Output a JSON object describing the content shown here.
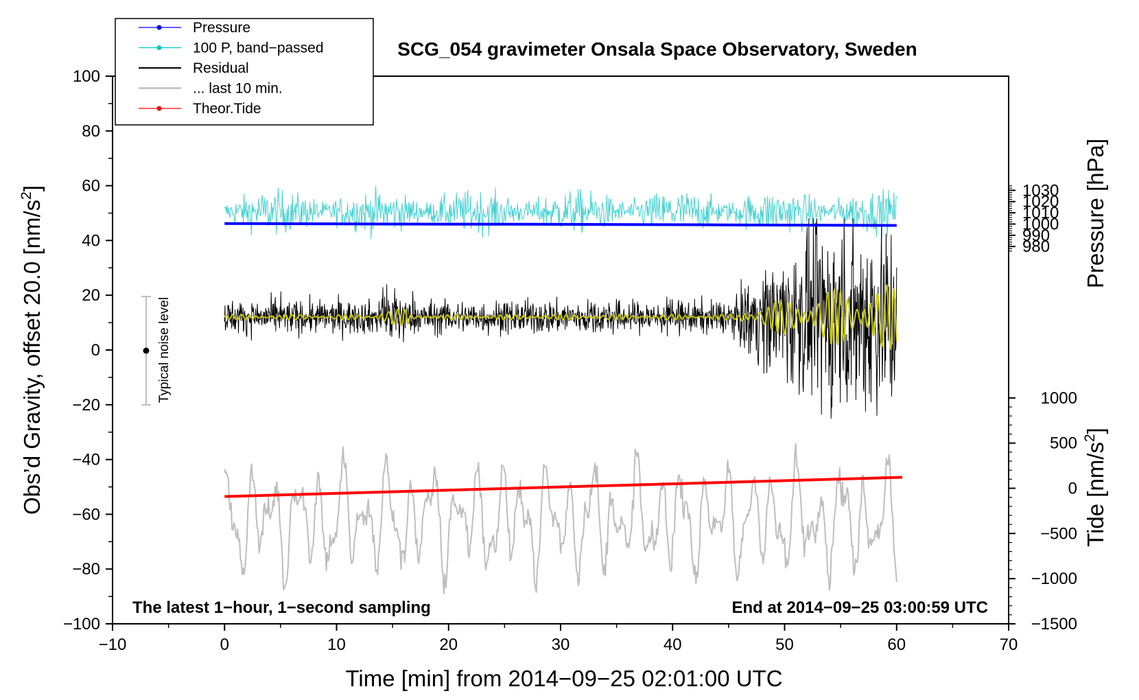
{
  "chart_data": {
    "type": "line",
    "title": "SCG_054 gravimeter Onsala Space Observatory, Sweden",
    "xlabel": "Time [min] from 2014−09−25 02:01:00 UTC",
    "ylabel": "Obs’d Gravity, offset 20.0 [nm/s",
    "ylabel_sup": "2",
    "ylabel_close": "]",
    "xlim": [
      -10,
      70
    ],
    "ylim": [
      -100,
      100
    ],
    "xticks": [
      -10,
      0,
      10,
      20,
      30,
      40,
      50,
      60,
      70
    ],
    "xtick_labels": [
      "−10",
      "0",
      "10",
      "20",
      "30",
      "40",
      "50",
      "60",
      "70"
    ],
    "yticks": [
      -100,
      -80,
      -60,
      -40,
      -20,
      0,
      20,
      40,
      60,
      80,
      100
    ],
    "ytick_labels": [
      "−100",
      "−80",
      "−60",
      "−40",
      "−20",
      "0",
      "20",
      "40",
      "60",
      "80",
      "100"
    ],
    "pressure_axis": {
      "label": "Pressure [hPa]",
      "ticks": [
        980,
        990,
        1000,
        1010,
        1020,
        1030
      ],
      "tick_labels": [
        "980",
        "990",
        "1000",
        "1010",
        "1020",
        "1030"
      ],
      "gravity_at_1000": 46,
      "gravity_per_hpa": 0.41
    },
    "tide_axis": {
      "label": "Tide [nm/s",
      "label_sup": "2",
      "label_close": "]",
      "ticks": [
        -1500,
        -1000,
        -500,
        0,
        500,
        1000
      ],
      "tick_labels": [
        "−1500",
        "−1000",
        "−500",
        "0",
        "500",
        "1000"
      ],
      "gravity_at_0": -50.5,
      "gravity_per_unit": 0.033
    },
    "legend": [
      {
        "label": "Pressure",
        "color": "#0000ff",
        "marker": true
      },
      {
        "label": "100 P, band−passed",
        "color": "#00c8c8",
        "marker": true
      },
      {
        "label": "Residual",
        "color": "#000000",
        "marker": false
      },
      {
        "label": "... last 10 min.",
        "color": "#bebebe",
        "marker": false
      },
      {
        "label": "Theor.Tide",
        "color": "#ff0000",
        "marker": true
      }
    ],
    "series": [
      {
        "name": "Pressure",
        "color": "#0000ff",
        "x": [
          0,
          15,
          30,
          45,
          60
        ],
        "y": [
          46.2,
          46.0,
          45.9,
          45.7,
          45.5
        ]
      },
      {
        "name": "100 P, band−passed",
        "color": "#40d0d0",
        "x_range": [
          0,
          60
        ],
        "center": 50.5,
        "amplitude": [
          3,
          7
        ]
      },
      {
        "name": "Residual",
        "color": "#000000",
        "x_range": [
          0,
          60
        ],
        "center": 12,
        "amplitude": [
          5,
          10,
          30
        ]
      },
      {
        "name": "Residual, smoothed",
        "color": "#c8c800",
        "x_range": [
          0,
          60
        ],
        "center": 12,
        "amplitude": [
          1,
          3,
          12
        ]
      },
      {
        "name": "... last 10 min.",
        "color": "#bebebe",
        "x_range": [
          0,
          60
        ],
        "center": -62,
        "amplitude": 22
      },
      {
        "name": "Theor.Tide",
        "color": "#ff0000",
        "x": [
          0,
          60.5
        ],
        "y": [
          -53.5,
          -46.5
        ]
      }
    ],
    "noise_level": {
      "label": "Typical noise level",
      "x": -7,
      "y": 0,
      "ymin": -20,
      "ymax": 20
    },
    "annotations": {
      "left": "The latest 1−hour, 1−second sampling",
      "right": "End at 2014−09−25 03:00:59 UTC"
    }
  }
}
